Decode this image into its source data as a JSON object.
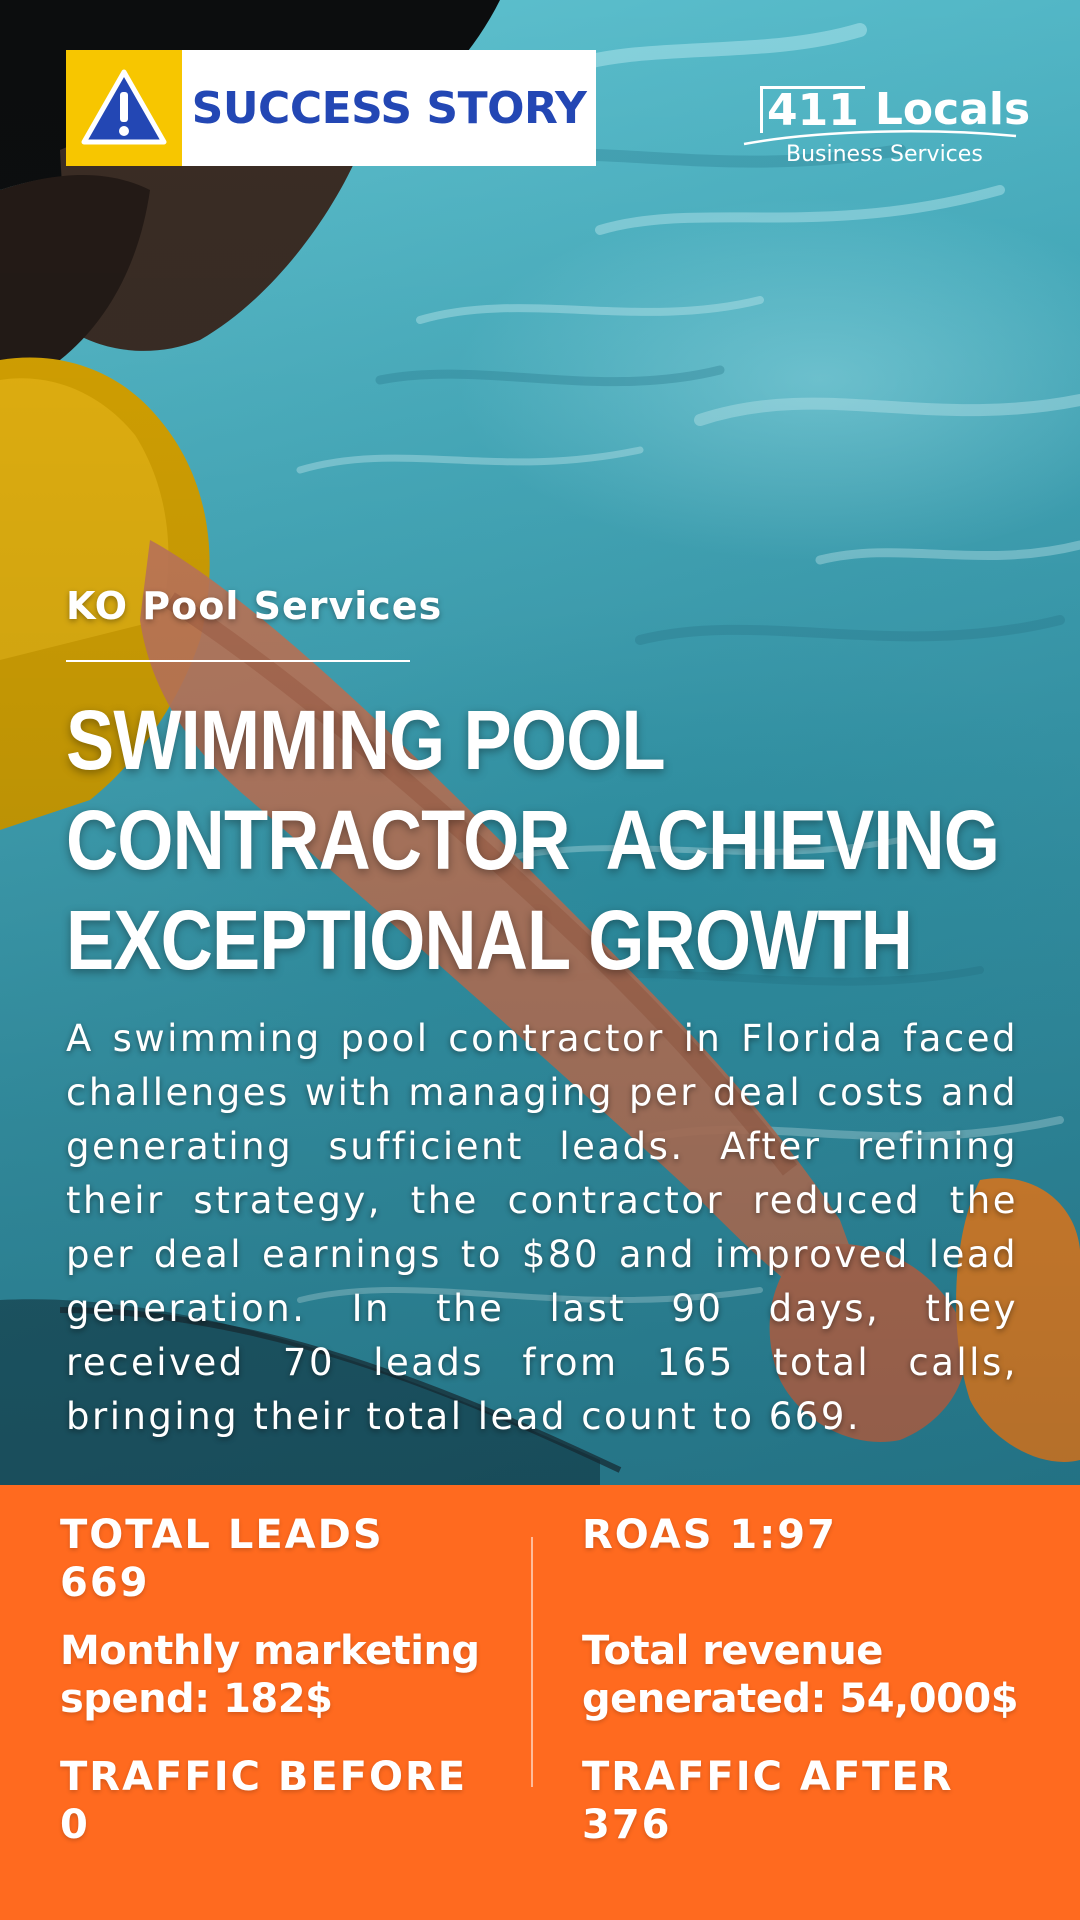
{
  "badge": {
    "icon": "warning-icon",
    "label": "SUCCESS STORY",
    "colors": {
      "icon_bg": "#f7c600",
      "label": "#2347b4",
      "bg": "#ffffff"
    }
  },
  "logo": {
    "number": "411",
    "word": "Locals",
    "subtitle": "Business Services"
  },
  "company": "KO Pool Services",
  "headline": {
    "lines": [
      "SWIMMING POOL",
      "CONTRACTOR  ACHIEVING",
      "EXCEPTIONAL GROWTH"
    ]
  },
  "body": "A swimming pool contractor in Florida faced challenges with managing per deal costs and generating sufficient leads. After refining their strategy, the contractor reduced the per deal earnings to $80 and improved lead generation. In the last 90 days, they received 70 leads from 165 total calls, bringing their total lead count to 669.",
  "stats": {
    "accent": "#ff6a1f",
    "total_leads": {
      "label": "TOTAL LEADS",
      "value": "669"
    },
    "roas": {
      "label": "ROAS 1:97"
    },
    "monthly_spend": {
      "line1": "Monthly marketing",
      "line2": "spend: 182$"
    },
    "total_revenue": {
      "line1": "Total revenue",
      "line2": "generated: 54,000$"
    },
    "traffic_before": {
      "label": "TRAFFIC BEFORE",
      "value": "0"
    },
    "traffic_after": {
      "label": "TRAFFIC AFTER",
      "value": "376"
    }
  }
}
